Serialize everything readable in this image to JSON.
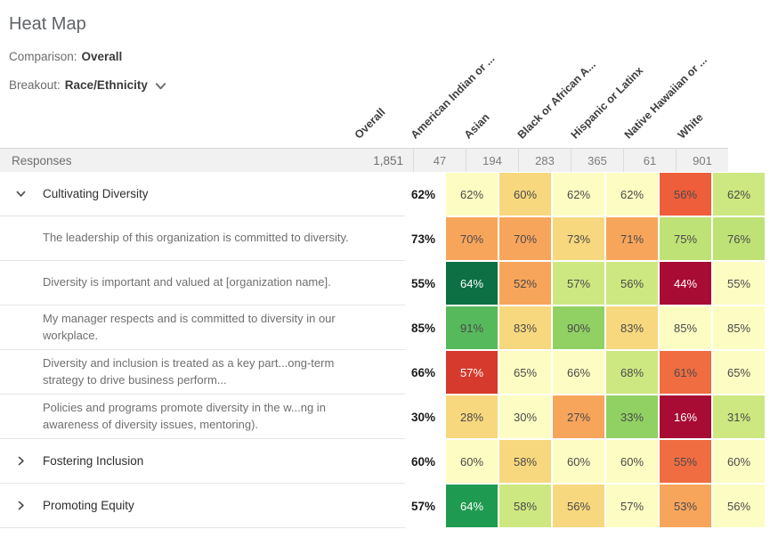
{
  "header": {
    "title": "Heat Map",
    "comparison_label": "Comparison:",
    "comparison_value": "Overall",
    "breakout_label": "Breakout:",
    "breakout_value": "Race/Ethnicity",
    "breakout_chevron_icon": "chevron-down-icon"
  },
  "colors": {
    "responses_row_bg": "#f1f1f1",
    "row_border": "#e6e6e6",
    "muted_text": "#6e6e6e"
  },
  "table": {
    "columns": [
      "Overall",
      "American Indian or ...",
      "Asian",
      "Black or African A...",
      "Hispanic or Latinx",
      "Native Hawaiian or ...",
      "White"
    ],
    "responses": {
      "label": "Responses",
      "overall": "1,851",
      "counts": [
        "47",
        "194",
        "283",
        "365",
        "61",
        "901"
      ]
    },
    "rows": [
      {
        "type": "category",
        "expanded": true,
        "label": "Cultivating Diversity",
        "overall": "62%",
        "cells": [
          {
            "value": "62%",
            "bg": "#fdfdc3"
          },
          {
            "value": "60%",
            "bg": "#f8d87e"
          },
          {
            "value": "62%",
            "bg": "#fdfdc3"
          },
          {
            "value": "62%",
            "bg": "#fdfdc3"
          },
          {
            "value": "56%",
            "bg": "#ee5e3b"
          },
          {
            "value": "62%",
            "bg": "#cde881"
          }
        ]
      },
      {
        "type": "question",
        "label": "The leadership of this organization is committed to diversity.",
        "overall": "73%",
        "cells": [
          {
            "value": "70%",
            "bg": "#f8a55c"
          },
          {
            "value": "70%",
            "bg": "#f8a55c"
          },
          {
            "value": "73%",
            "bg": "#f8d87e"
          },
          {
            "value": "71%",
            "bg": "#f8a55c"
          },
          {
            "value": "75%",
            "bg": "#bfe276"
          },
          {
            "value": "76%",
            "bg": "#bfe276"
          }
        ]
      },
      {
        "type": "question",
        "label": "Diversity is important and valued at [organization name].",
        "overall": "55%",
        "cells": [
          {
            "value": "64%",
            "bg": "#0c7044",
            "fg": "#ffffff"
          },
          {
            "value": "52%",
            "bg": "#f8a55c"
          },
          {
            "value": "57%",
            "bg": "#cde881"
          },
          {
            "value": "56%",
            "bg": "#cde881"
          },
          {
            "value": "44%",
            "bg": "#a80b34",
            "fg": "#ffffff"
          },
          {
            "value": "55%",
            "bg": "#fdfdc3"
          }
        ]
      },
      {
        "type": "question",
        "label": "My manager respects and is committed to diversity in our workplace.",
        "overall": "85%",
        "cells": [
          {
            "value": "91%",
            "bg": "#56b95c"
          },
          {
            "value": "83%",
            "bg": "#f8d87e"
          },
          {
            "value": "90%",
            "bg": "#91d163"
          },
          {
            "value": "83%",
            "bg": "#f8d87e"
          },
          {
            "value": "85%",
            "bg": "#fdfdc3"
          },
          {
            "value": "85%",
            "bg": "#fdfdc3"
          }
        ]
      },
      {
        "type": "question",
        "label": "Diversity and inclusion is treated as a key part...ong-term strategy to drive business perform...",
        "overall": "66%",
        "cells": [
          {
            "value": "57%",
            "bg": "#d63a2c",
            "fg": "#ffffff"
          },
          {
            "value": "65%",
            "bg": "#fdfdc3"
          },
          {
            "value": "66%",
            "bg": "#fdfdc3"
          },
          {
            "value": "68%",
            "bg": "#cde881"
          },
          {
            "value": "61%",
            "bg": "#f06d42"
          },
          {
            "value": "65%",
            "bg": "#fdfdc3"
          }
        ]
      },
      {
        "type": "question",
        "label": "Policies and programs promote diversity in the w...ng in awareness of diversity issues, mentoring).",
        "overall": "30%",
        "cells": [
          {
            "value": "28%",
            "bg": "#f8d87e"
          },
          {
            "value": "30%",
            "bg": "#fdfdc3"
          },
          {
            "value": "27%",
            "bg": "#f8a55c"
          },
          {
            "value": "33%",
            "bg": "#91d163"
          },
          {
            "value": "16%",
            "bg": "#a80b34",
            "fg": "#ffffff"
          },
          {
            "value": "31%",
            "bg": "#cde881"
          }
        ]
      },
      {
        "type": "category",
        "expanded": false,
        "label": "Fostering Inclusion",
        "overall": "60%",
        "cells": [
          {
            "value": "60%",
            "bg": "#fdfdc3"
          },
          {
            "value": "58%",
            "bg": "#f8d87e"
          },
          {
            "value": "60%",
            "bg": "#fdfdc3"
          },
          {
            "value": "60%",
            "bg": "#fdfdc3"
          },
          {
            "value": "55%",
            "bg": "#f06d42"
          },
          {
            "value": "60%",
            "bg": "#fdfdc3"
          }
        ]
      },
      {
        "type": "category",
        "expanded": false,
        "label": "Promoting Equity",
        "overall": "57%",
        "cells": [
          {
            "value": "64%",
            "bg": "#1f9b51",
            "fg": "#ffffff"
          },
          {
            "value": "58%",
            "bg": "#cde881"
          },
          {
            "value": "56%",
            "bg": "#f8d87e"
          },
          {
            "value": "57%",
            "bg": "#fdfdc3"
          },
          {
            "value": "53%",
            "bg": "#f8a55c"
          },
          {
            "value": "56%",
            "bg": "#fdfdc3"
          }
        ]
      }
    ]
  }
}
